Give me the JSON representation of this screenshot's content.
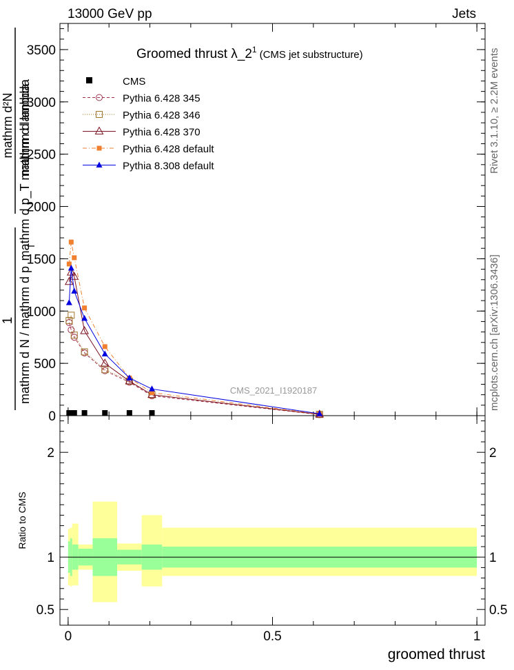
{
  "header": {
    "left_title": "13000 GeV pp",
    "right_title": "Jets"
  },
  "chart_data": {
    "type": "line",
    "title": "Groomed thrust  λ_2",
    "title_superscript": "1",
    "title_suffix": "(CMS jet substructure)",
    "xlabel": "groomed thrust",
    "ylabel_lines": [
      "1",
      "mathrm d N / mathrm d p",
      "mathrm d lambda",
      "mathrm d²N",
      "mathrm d p_T mathrm d lambda"
    ],
    "ylabel_sub": "T",
    "ratio_ylabel": "Ratio to CMS",
    "analysis_label": "CMS_2021_I1920187",
    "xlim": [
      -0.02,
      1.02
    ],
    "ylim": [
      0,
      3750
    ],
    "ratio_ylim": [
      0.35,
      2.35
    ],
    "x_ticks": [
      "0",
      "0.5",
      "1"
    ],
    "y_ticks": [
      "0",
      "500",
      "1000",
      "1500",
      "2000",
      "2500",
      "3000",
      "3500"
    ],
    "y_tick_values": [
      0,
      500,
      1000,
      1500,
      2000,
      2500,
      3000,
      3500
    ],
    "ratio_y_ticks": [
      "0.5",
      "1",
      "2"
    ],
    "ratio_y_tick_values": [
      0.5,
      1,
      2
    ],
    "legend_position": "top-left",
    "series": [
      {
        "name": "CMS",
        "style": "data",
        "color": "#000000",
        "x": [
          0.0025,
          0.0075,
          0.015,
          0.04,
          0.09,
          0.15,
          0.205
        ],
        "y": [
          0,
          0,
          0,
          0,
          0,
          0,
          0
        ]
      },
      {
        "name": "Pythia 6.428 345",
        "style": "dashed",
        "marker": "open-circle",
        "color": "#a0304a",
        "x": [
          0.0025,
          0.0075,
          0.015,
          0.04,
          0.09,
          0.15,
          0.205,
          0.615
        ],
        "y": [
          890,
          820,
          750,
          600,
          430,
          320,
          190,
          10
        ]
      },
      {
        "name": "Pythia 6.428 346",
        "style": "dotted",
        "marker": "open-square",
        "color": "#a0742a",
        "x": [
          0.0025,
          0.0075,
          0.015,
          0.04,
          0.09,
          0.15,
          0.205,
          0.615
        ],
        "y": [
          910,
          960,
          770,
          610,
          440,
          330,
          200,
          12
        ]
      },
      {
        "name": "Pythia 6.428 370",
        "style": "solid",
        "marker": "open-triangle",
        "color": "#7a1020",
        "x": [
          0.0025,
          0.0075,
          0.015,
          0.04,
          0.09,
          0.15,
          0.205,
          0.615
        ],
        "y": [
          1280,
          1370,
          1330,
          810,
          500,
          330,
          200,
          12
        ]
      },
      {
        "name": "Pythia 6.428 default",
        "style": "dashdot",
        "marker": "filled-square",
        "color": "#f08030",
        "x": [
          0.0025,
          0.0075,
          0.015,
          0.04,
          0.09,
          0.15,
          0.205,
          0.615
        ],
        "y": [
          1450,
          1660,
          1510,
          1030,
          660,
          360,
          220,
          15
        ]
      },
      {
        "name": "Pythia 8.308 default",
        "style": "solid",
        "marker": "filled-triangle",
        "color": "#0000e0",
        "x": [
          0.0025,
          0.0075,
          0.015,
          0.04,
          0.09,
          0.15,
          0.205,
          0.615
        ],
        "y": [
          1080,
          1410,
          1190,
          930,
          590,
          360,
          255,
          18
        ]
      }
    ],
    "ratio_bands": [
      {
        "x0": 0.0,
        "x1": 0.005,
        "inner": [
          0.85,
          1.15
        ],
        "outer": [
          0.73,
          1.27
        ]
      },
      {
        "x0": 0.005,
        "x1": 0.01,
        "inner": [
          0.82,
          1.18
        ],
        "outer": [
          0.72,
          1.28
        ]
      },
      {
        "x0": 0.01,
        "x1": 0.025,
        "inner": [
          0.88,
          1.12
        ],
        "outer": [
          0.73,
          1.32
        ]
      },
      {
        "x0": 0.025,
        "x1": 0.06,
        "inner": [
          0.92,
          1.08
        ],
        "outer": [
          0.88,
          1.12
        ]
      },
      {
        "x0": 0.06,
        "x1": 0.12,
        "inner": [
          0.82,
          1.18
        ],
        "outer": [
          0.57,
          1.53
        ]
      },
      {
        "x0": 0.12,
        "x1": 0.18,
        "inner": [
          0.93,
          1.07
        ],
        "outer": [
          0.87,
          1.13
        ]
      },
      {
        "x0": 0.18,
        "x1": 0.23,
        "inner": [
          0.88,
          1.12
        ],
        "outer": [
          0.72,
          1.4
        ]
      },
      {
        "x0": 0.23,
        "x1": 1.0,
        "inner": [
          0.9,
          1.1
        ],
        "outer": [
          0.82,
          1.28
        ]
      }
    ],
    "band_colors": {
      "inner": "#99ff99",
      "outer": "#ffff99"
    }
  },
  "side_notes": {
    "rivet": "Rivet 3.1.10, ≥ 2.2M events",
    "mcplots": "mcplots.cern.ch [arXiv:1306.3436]"
  }
}
